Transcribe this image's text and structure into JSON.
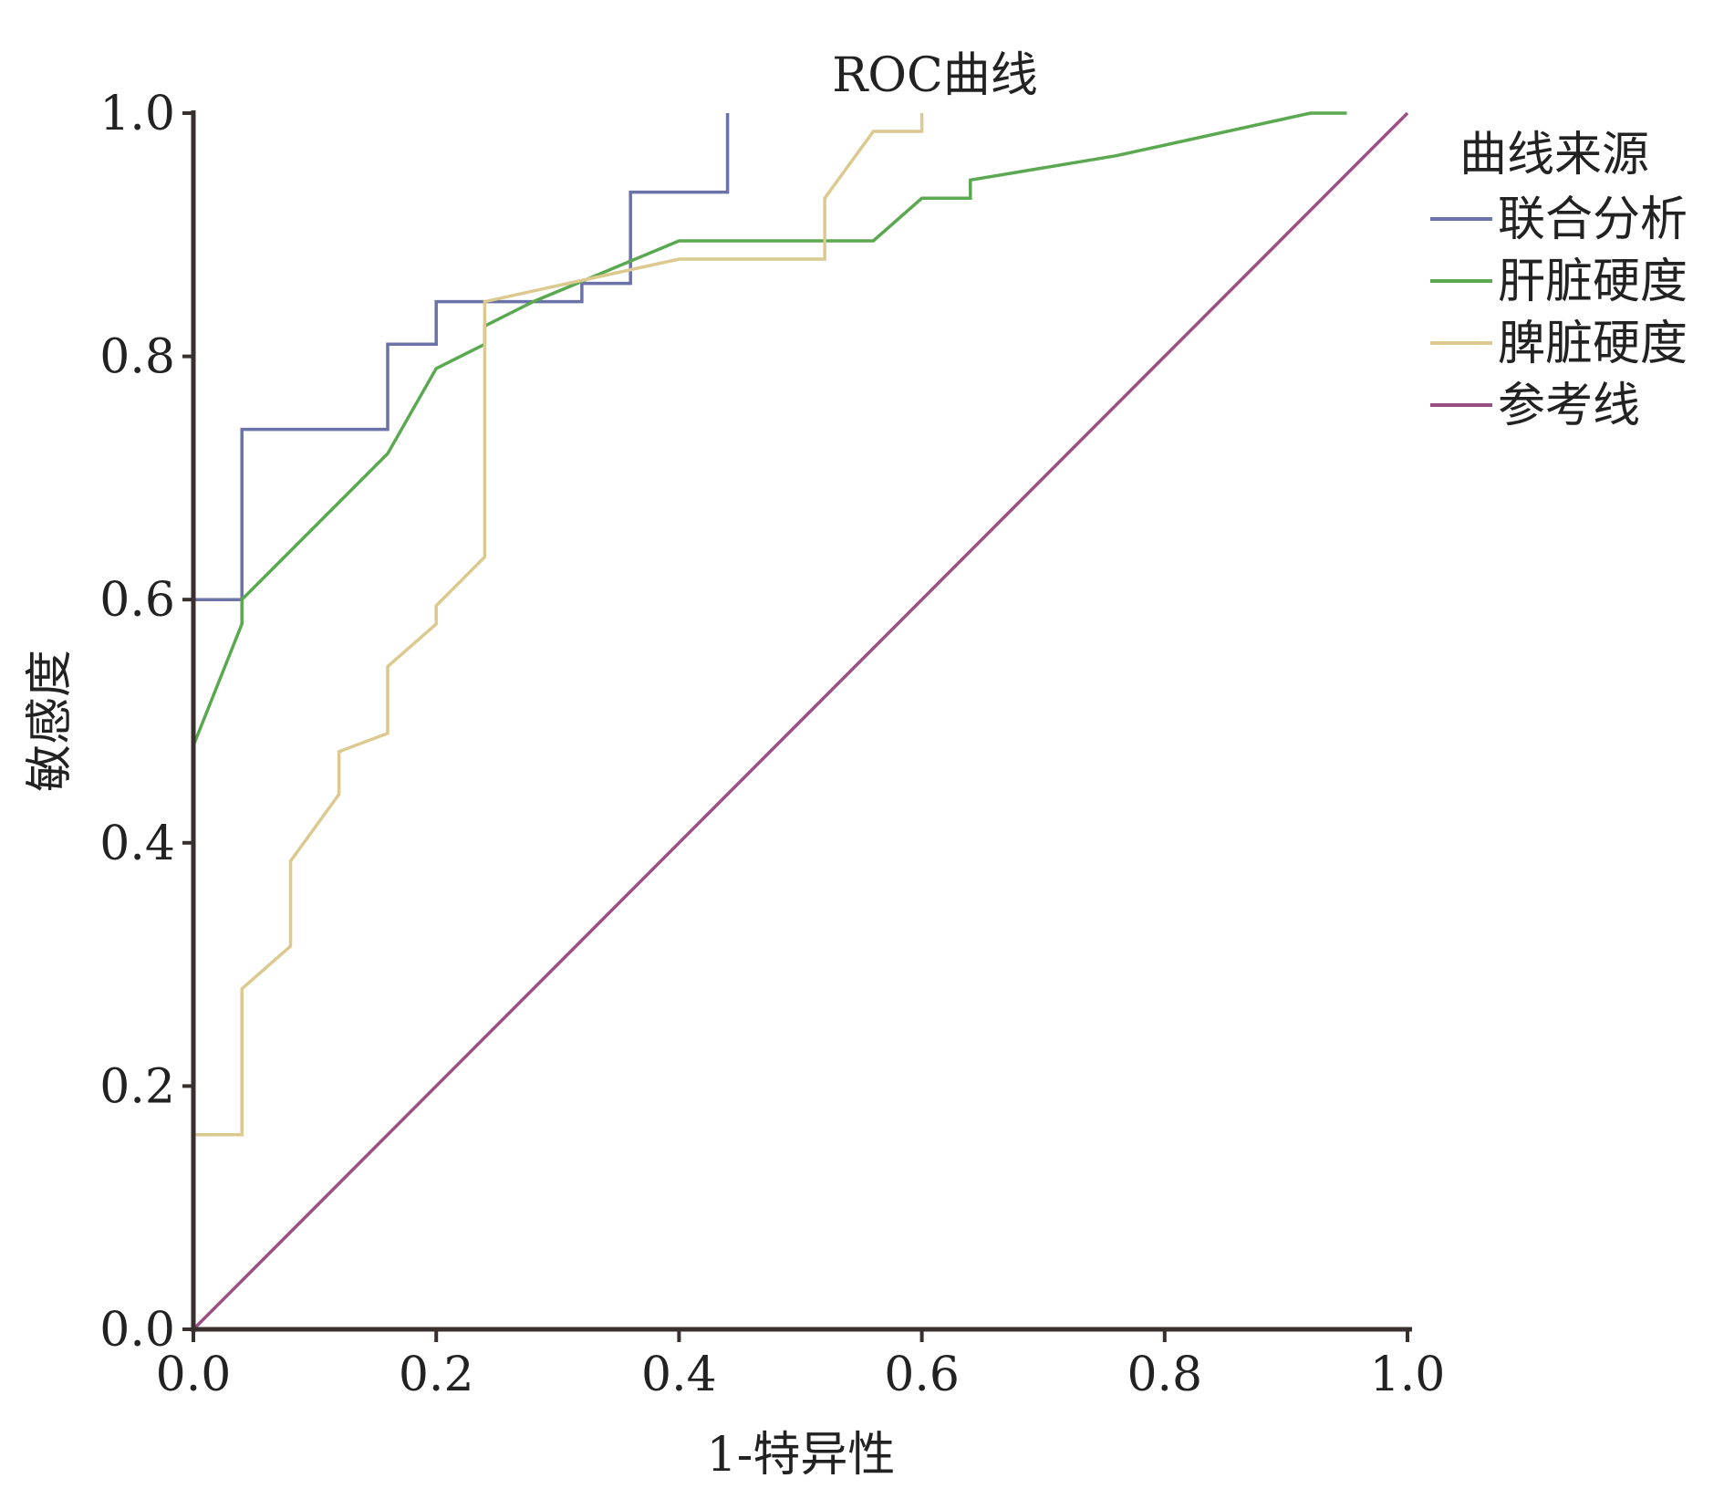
{
  "chart_data": {
    "type": "line",
    "title": "ROC曲线",
    "xlabel": "1-特异性",
    "ylabel": "敏感度",
    "xlim": [
      0,
      1
    ],
    "ylim": [
      0,
      1
    ],
    "xticks": [
      "0.0",
      "0.2",
      "0.4",
      "0.6",
      "0.8",
      "1.0"
    ],
    "yticks": [
      "0.0",
      "0.2",
      "0.4",
      "0.6",
      "0.8",
      "1.0"
    ],
    "grid": false,
    "legend_title": "曲线来源",
    "legend_position": "top-right",
    "series": [
      {
        "name": "联合分析",
        "color": "#6a72a8",
        "points": [
          [
            0,
            0
          ],
          [
            0,
            0.6
          ],
          [
            0.04,
            0.6
          ],
          [
            0.04,
            0.74
          ],
          [
            0.16,
            0.74
          ],
          [
            0.16,
            0.81
          ],
          [
            0.2,
            0.81
          ],
          [
            0.2,
            0.845
          ],
          [
            0.32,
            0.845
          ],
          [
            0.32,
            0.86
          ],
          [
            0.36,
            0.86
          ],
          [
            0.36,
            0.935
          ],
          [
            0.44,
            0.935
          ],
          [
            0.44,
            1.0
          ]
        ]
      },
      {
        "name": "肝脏硬度",
        "color": "#5aa84f",
        "points": [
          [
            0,
            0
          ],
          [
            0,
            0.48
          ],
          [
            0.04,
            0.58
          ],
          [
            0.04,
            0.6
          ],
          [
            0.16,
            0.72
          ],
          [
            0.2,
            0.79
          ],
          [
            0.24,
            0.81
          ],
          [
            0.24,
            0.825
          ],
          [
            0.28,
            0.845
          ],
          [
            0.4,
            0.895
          ],
          [
            0.56,
            0.895
          ],
          [
            0.6,
            0.93
          ],
          [
            0.64,
            0.93
          ],
          [
            0.64,
            0.945
          ],
          [
            0.76,
            0.965
          ],
          [
            0.92,
            1.0
          ],
          [
            0.95,
            1.0
          ]
        ]
      },
      {
        "name": "脾脏硬度",
        "color": "#dcc98f",
        "points": [
          [
            0,
            0.16
          ],
          [
            0.04,
            0.16
          ],
          [
            0.04,
            0.28
          ],
          [
            0.08,
            0.315
          ],
          [
            0.08,
            0.385
          ],
          [
            0.12,
            0.44
          ],
          [
            0.12,
            0.475
          ],
          [
            0.16,
            0.49
          ],
          [
            0.16,
            0.545
          ],
          [
            0.2,
            0.58
          ],
          [
            0.2,
            0.595
          ],
          [
            0.24,
            0.635
          ],
          [
            0.24,
            0.845
          ],
          [
            0.4,
            0.88
          ],
          [
            0.52,
            0.88
          ],
          [
            0.52,
            0.93
          ],
          [
            0.56,
            0.985
          ],
          [
            0.6,
            0.985
          ],
          [
            0.6,
            1.0
          ]
        ]
      },
      {
        "name": "参考线",
        "color": "#9b4f83",
        "points": [
          [
            0,
            0
          ],
          [
            1,
            1
          ]
        ]
      }
    ]
  }
}
